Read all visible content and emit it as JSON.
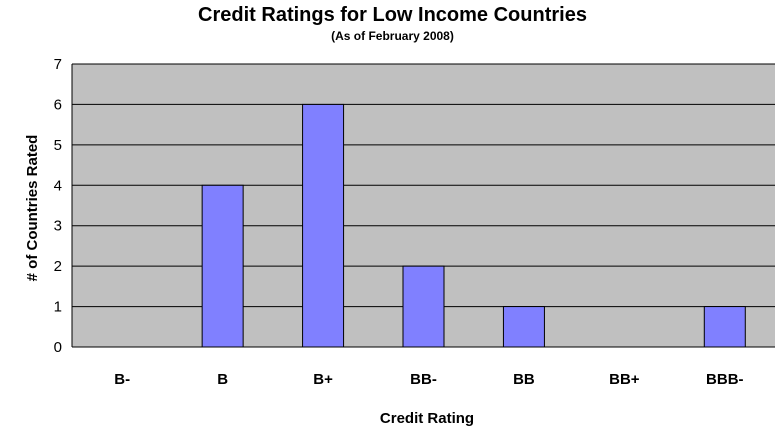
{
  "chart_data": {
    "type": "bar",
    "title": "Credit Ratings for Low Income Countries",
    "subtitle": "(As of February 2008)",
    "xlabel": "Credit Rating",
    "ylabel": "# of Countries Rated",
    "categories": [
      "B-",
      "B",
      "B+",
      "BB-",
      "BB",
      "BB+",
      "BBB-"
    ],
    "values": [
      0,
      4,
      6,
      2,
      1,
      0,
      1
    ],
    "ylim": [
      0,
      7
    ],
    "yticks": [
      "0",
      "1",
      "2",
      "3",
      "4",
      "5",
      "6",
      "7"
    ],
    "grid": true,
    "legend": "none",
    "colors": {
      "bar_fill": "#8080FF",
      "bar_stroke": "#000000",
      "plot_background": "#C0C0C0",
      "gridline": "#000000"
    }
  }
}
